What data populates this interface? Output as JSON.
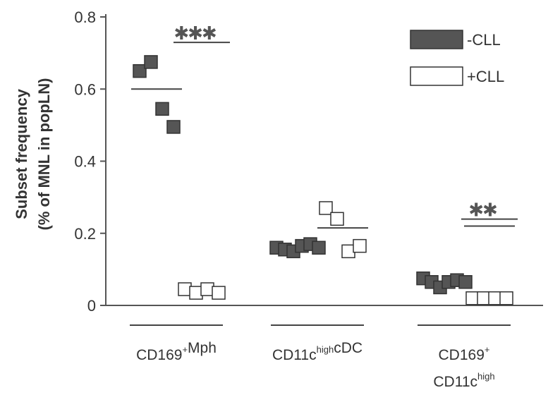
{
  "chart_data": {
    "type": "scatter",
    "ylabel_line1": "Subset frequency",
    "ylabel_line2": "(% of MNL in popLN)",
    "ylim": [
      0,
      0.8
    ],
    "yticks": [
      "0",
      "0.2",
      "0.4",
      "0.6",
      "0.8"
    ],
    "ytick_values": [
      0,
      0.2,
      0.4,
      0.6,
      0.8
    ],
    "legend_placement": "top-right",
    "series": [
      {
        "name": "-CLL",
        "fill": "#555555",
        "stroke": "#333333"
      },
      {
        "name": "+CLL",
        "fill": "#ffffff",
        "stroke": "#333333"
      }
    ],
    "groups": [
      {
        "label_parts": [
          {
            "text": "CD169",
            "sup": "+"
          },
          {
            "text": "Mph",
            "sup": ""
          }
        ],
        "label_line2_parts": [],
        "minus_cll": [
          0.65,
          0.675,
          0.545,
          0.495
        ],
        "minus_cll_mean": 0.6,
        "plus_cll": [
          0.045,
          0.035,
          0.045,
          0.035
        ],
        "plus_cll_mean": 0,
        "significance": "***",
        "significance_y": 0.745
      },
      {
        "label_parts": [
          {
            "text": "CD11c",
            "sup": "high"
          },
          {
            "text": "cDC",
            "sup": ""
          }
        ],
        "label_line2_parts": [],
        "minus_cll": [
          0.16,
          0.155,
          0.15,
          0.165,
          0.17,
          0.16
        ],
        "minus_cll_mean": 0.16,
        "plus_cll": [
          0.27,
          0.24,
          0.15,
          0.165
        ],
        "plus_cll_mean": 0.215,
        "significance": "",
        "significance_y": 0
      },
      {
        "label_parts": [
          {
            "text": "CD169",
            "sup": "+"
          }
        ],
        "label_line2_parts": [
          {
            "text": "CD11c",
            "sup": "high"
          }
        ],
        "minus_cll": [
          0.075,
          0.065,
          0.05,
          0.065,
          0.07,
          0.065
        ],
        "minus_cll_mean": 0.065,
        "plus_cll": [
          0.02,
          0.02,
          0.02,
          0.02
        ],
        "plus_cll_mean": 0.22,
        "significance": "**",
        "significance_y": 0.255
      }
    ]
  }
}
